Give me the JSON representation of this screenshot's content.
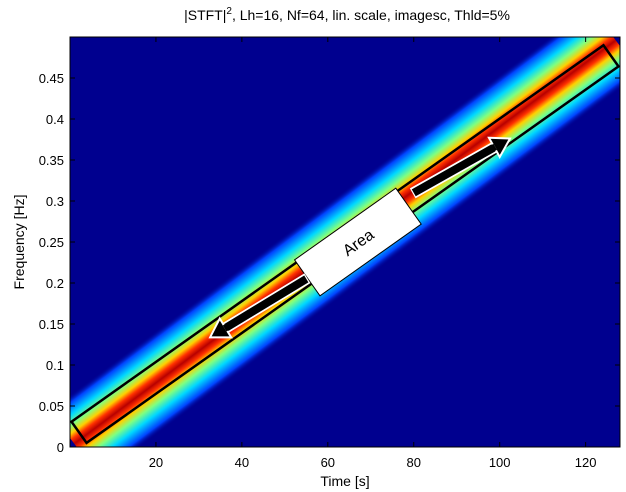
{
  "chart_data": {
    "type": "heatmap",
    "title": {
      "main": "|STFT|",
      "superscript": "2",
      "rest": ", Lh=16, Nf=64, lin. scale, imagesc, Thld=5%"
    },
    "xlabel": "Time [s]",
    "ylabel": "Frequency [Hz]",
    "xlim": [
      0,
      128
    ],
    "ylim": [
      0,
      0.5
    ],
    "xticks": [
      20,
      40,
      60,
      80,
      100,
      120
    ],
    "xtick_labels": [
      "20",
      "40",
      "60",
      "80",
      "100",
      "120"
    ],
    "yticks": [
      0,
      0.05,
      0.1,
      0.15,
      0.2,
      0.25,
      0.3,
      0.35,
      0.4,
      0.45
    ],
    "ytick_labels": [
      "0",
      "0.05",
      "0.1",
      "0.15",
      "0.2",
      "0.25",
      "0.3",
      "0.35",
      "0.4",
      "0.45"
    ],
    "ridge": {
      "description": "linear chirp energy ridge",
      "start": {
        "time": 1,
        "frequency": 0.004
      },
      "end": {
        "time": 127,
        "frequency": 0.496
      }
    },
    "colormap": "jet",
    "background_color": "#00008f",
    "annotations": {
      "box": {
        "start": {
          "time": 4,
          "frequency": 0.025
        },
        "end": {
          "time": 124,
          "frequency": 0.47
        }
      },
      "area_label": {
        "text": "Area",
        "center": {
          "time": 67,
          "frequency": 0.25
        }
      },
      "arrows": [
        {
          "from": {
            "time": 55,
            "frequency": 0.205
          },
          "to": {
            "time": 33,
            "frequency": 0.135
          }
        },
        {
          "from": {
            "time": 80,
            "frequency": 0.31
          },
          "to": {
            "time": 102,
            "frequency": 0.375
          }
        }
      ]
    }
  }
}
